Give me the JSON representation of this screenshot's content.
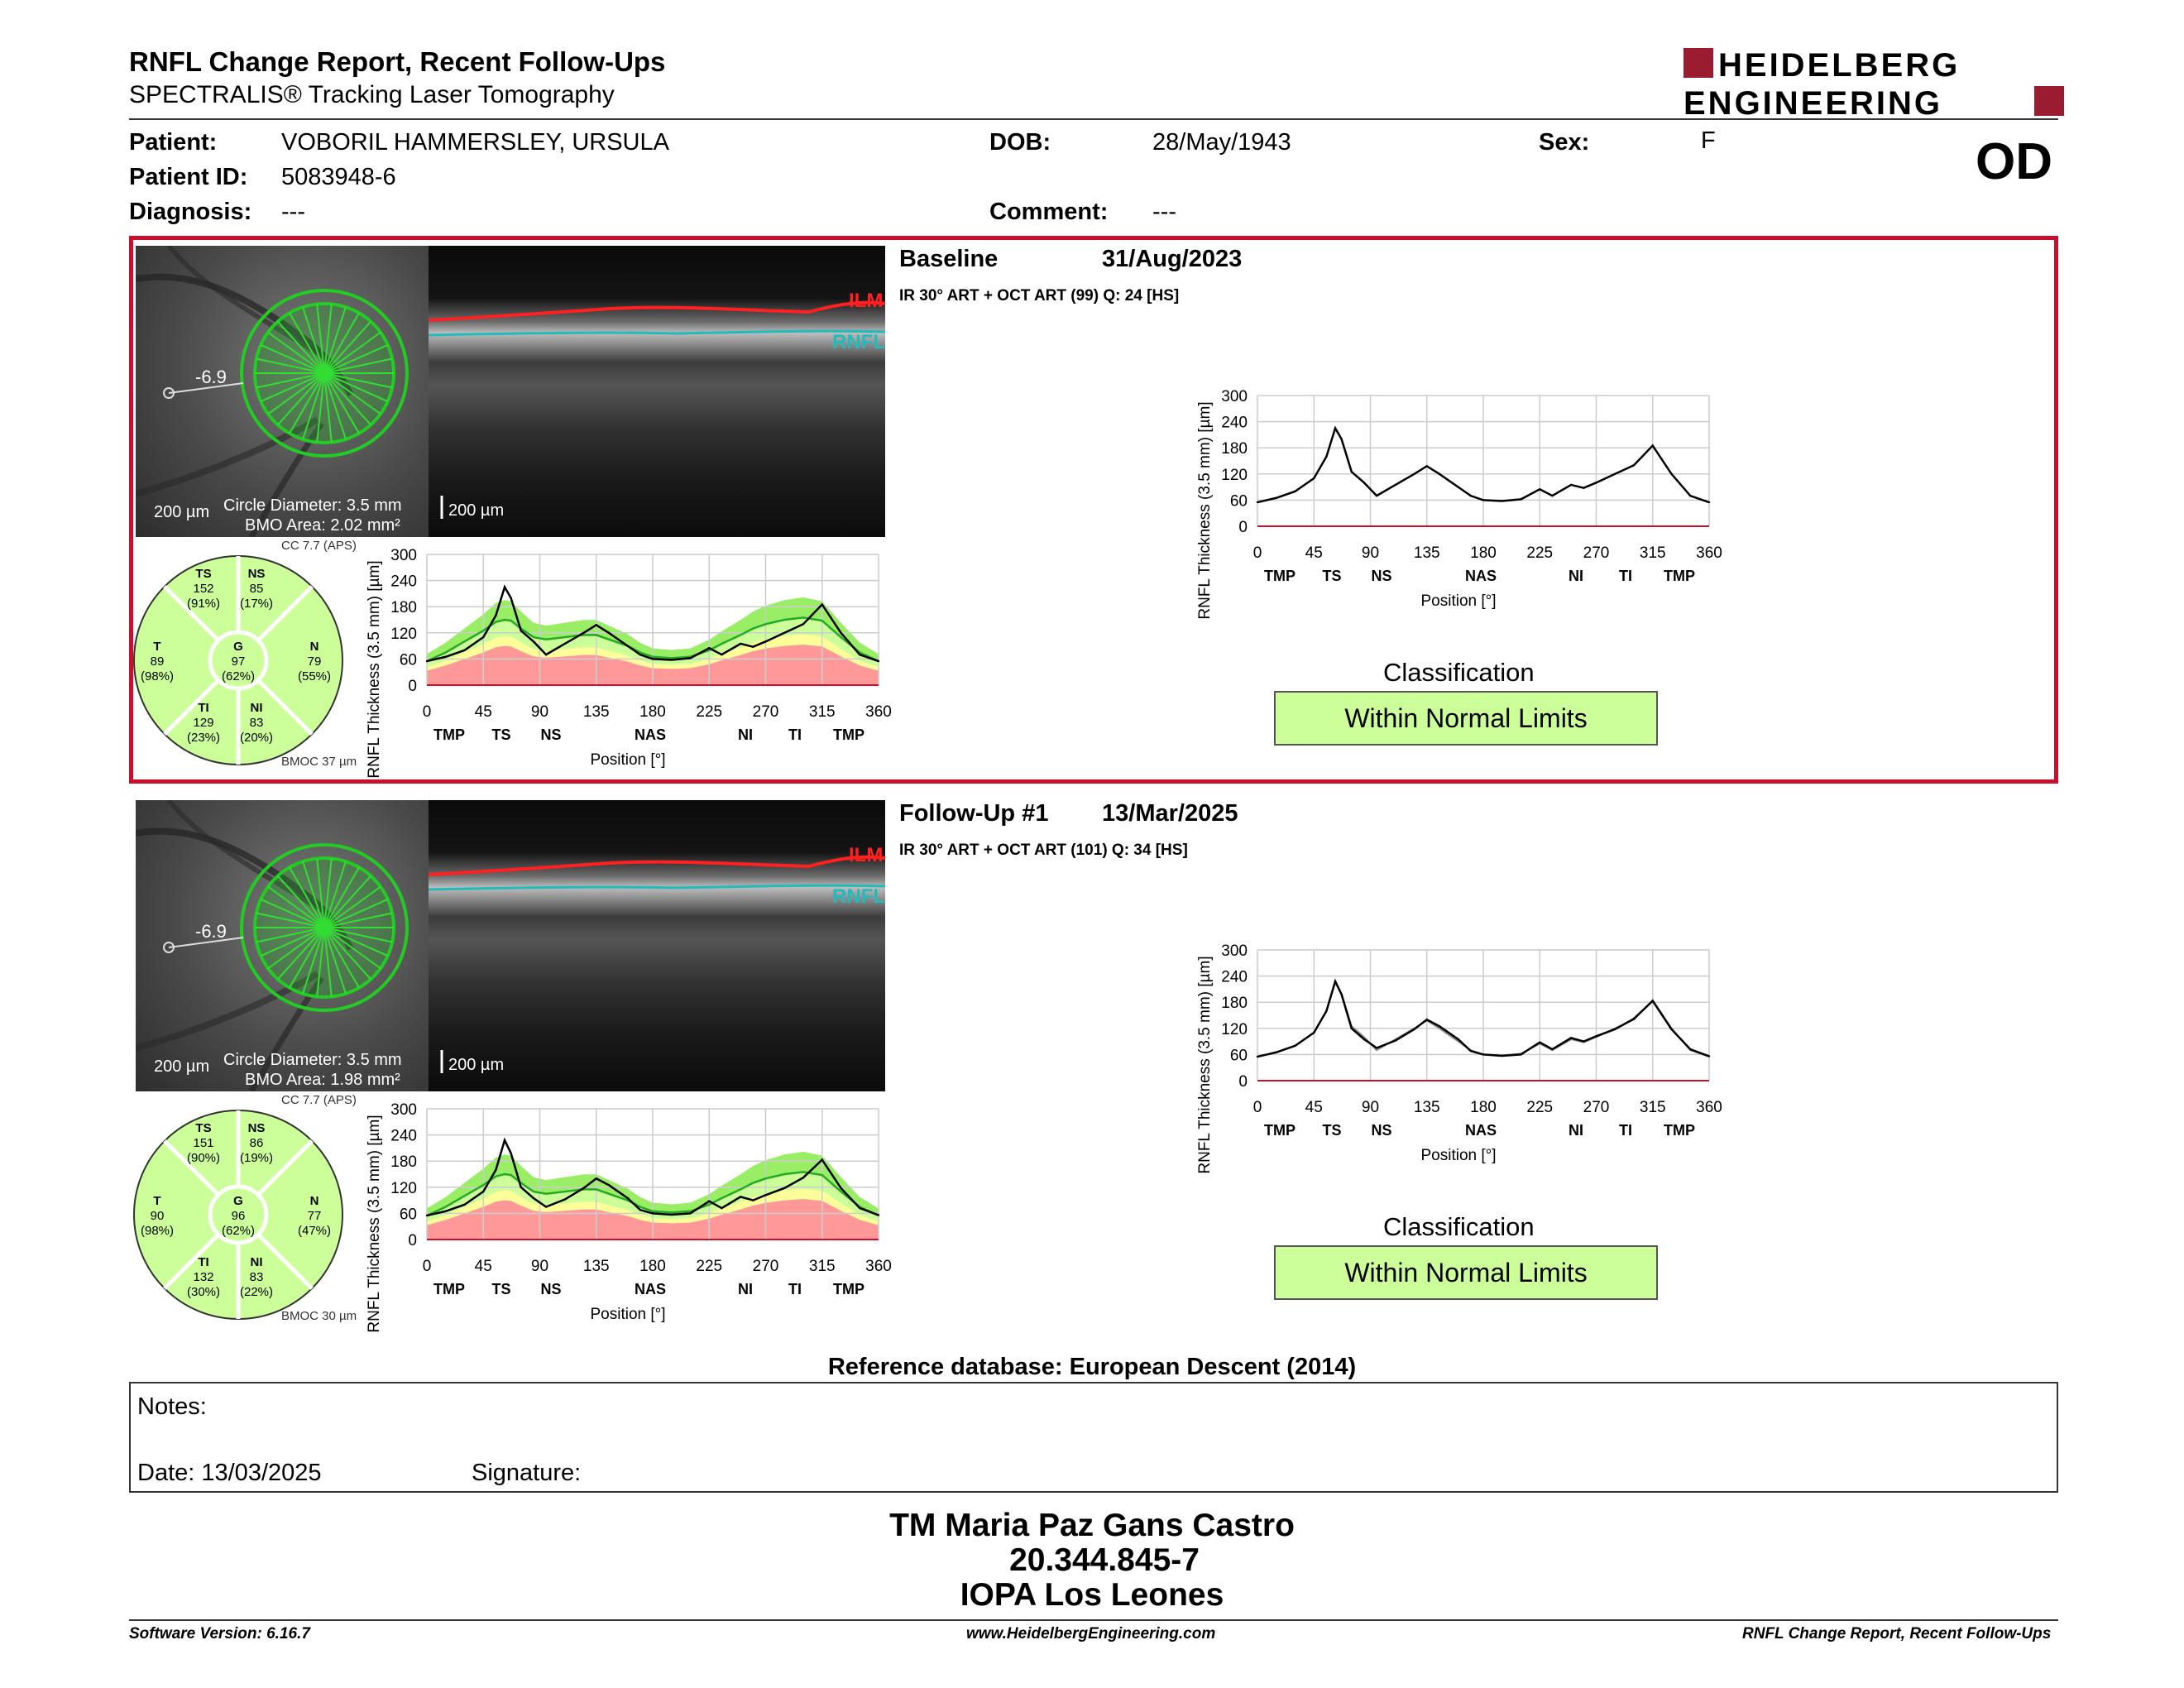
{
  "header": {
    "title": "RNFL Change Report, Recent Follow-Ups",
    "subtitle": "SPECTRALIS® Tracking Laser Tomography",
    "logo_line1": "HEIDELBERG",
    "logo_line2": "ENGINEERING",
    "eye": "OD"
  },
  "patient": {
    "patient_label": "Patient:",
    "patient_name": "VOBORIL HAMMERSLEY, URSULA",
    "id_label": "Patient ID:",
    "id": "5083948-6",
    "diagnosis_label": "Diagnosis:",
    "diagnosis": "---",
    "dob_label": "DOB:",
    "dob": "28/May/1943",
    "comment_label": "Comment:",
    "comment": "---",
    "sex_label": "Sex:",
    "sex": "F"
  },
  "exams": [
    {
      "title": "Baseline",
      "date": "31/Aug/2023",
      "scan": "IR 30° ART + OCT ART (99) Q: 24 [HS]",
      "circle_value": "-6.9",
      "scale_fundus": "200 µm",
      "circle_diameter": "Circle Diameter: 3.5 mm",
      "bmo_area": "BMO Area: 2.02 mm²",
      "scale_bscan": "200 µm",
      "ilm": "ILM",
      "rnfl": "RNFL",
      "cc": "CC 7.7 (APS)",
      "bmoc": "BMOC 37 µm",
      "sectors": {
        "TS": {
          "label": "TS",
          "value": "152",
          "pct": "(91%)"
        },
        "NS": {
          "label": "NS",
          "value": "85",
          "pct": "(17%)"
        },
        "T": {
          "label": "T",
          "value": "89",
          "pct": "(98%)"
        },
        "G": {
          "label": "G",
          "value": "97",
          "pct": "(62%)"
        },
        "N": {
          "label": "N",
          "value": "79",
          "pct": "(55%)"
        },
        "TI": {
          "label": "TI",
          "value": "129",
          "pct": "(23%)"
        },
        "NI": {
          "label": "NI",
          "value": "83",
          "pct": "(20%)"
        }
      },
      "classification_label": "Classification",
      "classification": "Within Normal Limits"
    },
    {
      "title": "Follow-Up #1",
      "date": "13/Mar/2025",
      "scan": "IR 30° ART + OCT ART (101) Q: 34 [HS]",
      "circle_value": "-6.9",
      "scale_fundus": "200 µm",
      "circle_diameter": "Circle Diameter: 3.5 mm",
      "bmo_area": "BMO Area: 1.98 mm²",
      "scale_bscan": "200 µm",
      "ilm": "ILM",
      "rnfl": "RNFL",
      "cc": "CC 7.7 (APS)",
      "bmoc": "BMOC 30 µm",
      "sectors": {
        "TS": {
          "label": "TS",
          "value": "151",
          "pct": "(90%)"
        },
        "NS": {
          "label": "NS",
          "value": "86",
          "pct": "(19%)"
        },
        "T": {
          "label": "T",
          "value": "90",
          "pct": "(98%)"
        },
        "G": {
          "label": "G",
          "value": "96",
          "pct": "(62%)"
        },
        "N": {
          "label": "N",
          "value": "77",
          "pct": "(47%)"
        },
        "TI": {
          "label": "TI",
          "value": "132",
          "pct": "(30%)"
        },
        "NI": {
          "label": "NI",
          "value": "83",
          "pct": "(22%)"
        }
      },
      "classification_label": "Classification",
      "classification": "Within Normal Limits"
    }
  ],
  "chart_data": {
    "type": "line",
    "ylabel": "RNFL Thickness (3.5 mm) [µm]",
    "xlabel": "Position [°]",
    "xlim": [
      0,
      360
    ],
    "ylim": [
      0,
      300
    ],
    "x_ticks": [
      0,
      45,
      90,
      135,
      180,
      225,
      270,
      315,
      360
    ],
    "y_ticks": [
      0,
      60,
      120,
      180,
      240,
      300
    ],
    "sector_labels": [
      "TMP",
      "TS",
      "NS",
      "NAS",
      "NI",
      "TI",
      "TMP"
    ],
    "x": [
      0,
      15,
      30,
      45,
      55,
      62,
      67,
      75,
      85,
      95,
      110,
      125,
      135,
      145,
      160,
      170,
      180,
      195,
      210,
      225,
      235,
      250,
      260,
      270,
      285,
      300,
      315,
      330,
      345,
      360
    ],
    "series": [
      {
        "values": [
          55,
          65,
          80,
          110,
          160,
          225,
          200,
          125,
          100,
          70,
          95,
          120,
          138,
          120,
          90,
          70,
          60,
          58,
          62,
          85,
          70,
          95,
          88,
          100,
          120,
          140,
          185,
          120,
          70,
          55
        ]
      },
      {
        "values": [
          55,
          65,
          80,
          110,
          160,
          228,
          198,
          120,
          95,
          75,
          92,
          118,
          140,
          125,
          95,
          68,
          60,
          57,
          60,
          88,
          72,
          98,
          90,
          102,
          118,
          142,
          183,
          118,
          72,
          56
        ]
      }
    ],
    "normal_mean": [
      55,
      75,
      100,
      125,
      145,
      150,
      148,
      130,
      110,
      105,
      110,
      115,
      115,
      105,
      90,
      75,
      65,
      62,
      65,
      80,
      95,
      115,
      130,
      140,
      150,
      155,
      148,
      110,
      75,
      55
    ]
  },
  "reference": "Reference database: European Descent (2014)",
  "notes": {
    "notes_label": "Notes:",
    "date_label": "Date: 13/03/2025",
    "signature_label": "Signature:"
  },
  "footer": {
    "line1": "TM Maria Paz Gans Castro",
    "line2": "20.344.845-7",
    "line3": "IOPA Los Leones",
    "software": "Software Version: 6.16.7",
    "website": "www.HeidelbergEngineering.com",
    "report_name": "RNFL Change Report, Recent Follow-Ups"
  },
  "colors": {
    "accent_red": "#c8102e",
    "wnl_green": "#ccff99",
    "borderline_yellow": "#ffff99",
    "outside_red": "#ff9999",
    "band_green": "#99ee66"
  }
}
